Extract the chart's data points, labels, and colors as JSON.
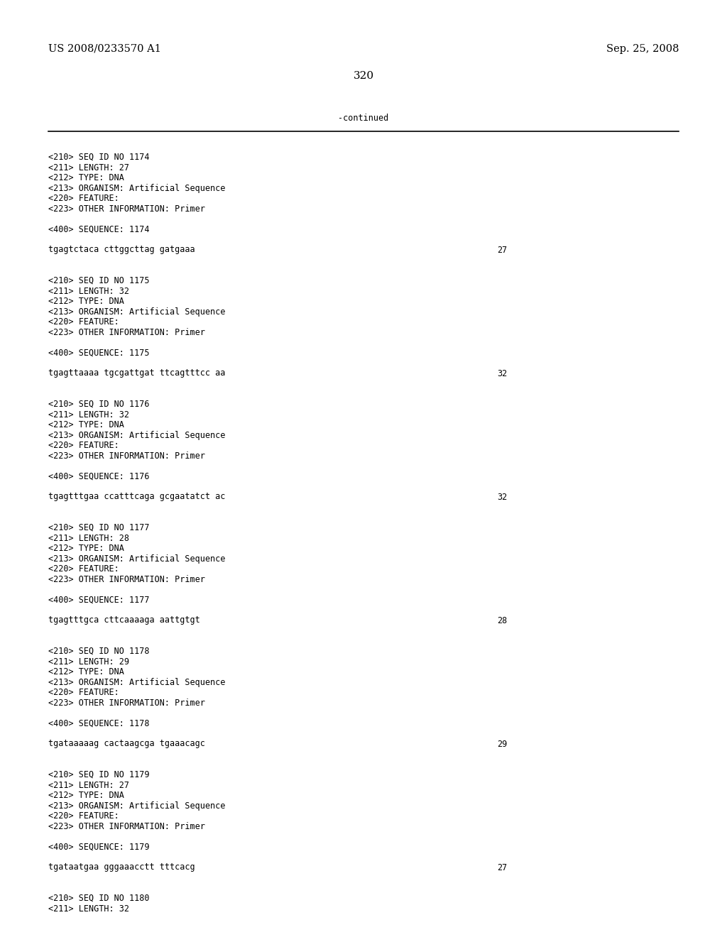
{
  "background_color": "#ffffff",
  "header_left": "US 2008/0233570 A1",
  "header_right": "Sep. 25, 2008",
  "page_number": "320",
  "continued_label": "-continued",
  "content_lines": [
    {
      "text": "<210> SEQ ID NO 1174",
      "type": "meta"
    },
    {
      "text": "<211> LENGTH: 27",
      "type": "meta"
    },
    {
      "text": "<212> TYPE: DNA",
      "type": "meta"
    },
    {
      "text": "<213> ORGANISM: Artificial Sequence",
      "type": "meta"
    },
    {
      "text": "<220> FEATURE:",
      "type": "meta"
    },
    {
      "text": "<223> OTHER INFORMATION: Primer",
      "type": "meta"
    },
    {
      "text": "",
      "type": "blank"
    },
    {
      "text": "<400> SEQUENCE: 1174",
      "type": "meta"
    },
    {
      "text": "",
      "type": "blank"
    },
    {
      "text": "tgagtctaca cttggcttag gatgaaa",
      "type": "seq",
      "num": "27"
    },
    {
      "text": "",
      "type": "blank"
    },
    {
      "text": "",
      "type": "blank"
    },
    {
      "text": "<210> SEQ ID NO 1175",
      "type": "meta"
    },
    {
      "text": "<211> LENGTH: 32",
      "type": "meta"
    },
    {
      "text": "<212> TYPE: DNA",
      "type": "meta"
    },
    {
      "text": "<213> ORGANISM: Artificial Sequence",
      "type": "meta"
    },
    {
      "text": "<220> FEATURE:",
      "type": "meta"
    },
    {
      "text": "<223> OTHER INFORMATION: Primer",
      "type": "meta"
    },
    {
      "text": "",
      "type": "blank"
    },
    {
      "text": "<400> SEQUENCE: 1175",
      "type": "meta"
    },
    {
      "text": "",
      "type": "blank"
    },
    {
      "text": "tgagttaaaa tgcgattgat ttcagtttcc aa",
      "type": "seq",
      "num": "32"
    },
    {
      "text": "",
      "type": "blank"
    },
    {
      "text": "",
      "type": "blank"
    },
    {
      "text": "<210> SEQ ID NO 1176",
      "type": "meta"
    },
    {
      "text": "<211> LENGTH: 32",
      "type": "meta"
    },
    {
      "text": "<212> TYPE: DNA",
      "type": "meta"
    },
    {
      "text": "<213> ORGANISM: Artificial Sequence",
      "type": "meta"
    },
    {
      "text": "<220> FEATURE:",
      "type": "meta"
    },
    {
      "text": "<223> OTHER INFORMATION: Primer",
      "type": "meta"
    },
    {
      "text": "",
      "type": "blank"
    },
    {
      "text": "<400> SEQUENCE: 1176",
      "type": "meta"
    },
    {
      "text": "",
      "type": "blank"
    },
    {
      "text": "tgagtttgaa ccatttcaga gcgaatatct ac",
      "type": "seq",
      "num": "32"
    },
    {
      "text": "",
      "type": "blank"
    },
    {
      "text": "",
      "type": "blank"
    },
    {
      "text": "<210> SEQ ID NO 1177",
      "type": "meta"
    },
    {
      "text": "<211> LENGTH: 28",
      "type": "meta"
    },
    {
      "text": "<212> TYPE: DNA",
      "type": "meta"
    },
    {
      "text": "<213> ORGANISM: Artificial Sequence",
      "type": "meta"
    },
    {
      "text": "<220> FEATURE:",
      "type": "meta"
    },
    {
      "text": "<223> OTHER INFORMATION: Primer",
      "type": "meta"
    },
    {
      "text": "",
      "type": "blank"
    },
    {
      "text": "<400> SEQUENCE: 1177",
      "type": "meta"
    },
    {
      "text": "",
      "type": "blank"
    },
    {
      "text": "tgagtttgca cttcaaaaga aattgtgt",
      "type": "seq",
      "num": "28"
    },
    {
      "text": "",
      "type": "blank"
    },
    {
      "text": "",
      "type": "blank"
    },
    {
      "text": "<210> SEQ ID NO 1178",
      "type": "meta"
    },
    {
      "text": "<211> LENGTH: 29",
      "type": "meta"
    },
    {
      "text": "<212> TYPE: DNA",
      "type": "meta"
    },
    {
      "text": "<213> ORGANISM: Artificial Sequence",
      "type": "meta"
    },
    {
      "text": "<220> FEATURE:",
      "type": "meta"
    },
    {
      "text": "<223> OTHER INFORMATION: Primer",
      "type": "meta"
    },
    {
      "text": "",
      "type": "blank"
    },
    {
      "text": "<400> SEQUENCE: 1178",
      "type": "meta"
    },
    {
      "text": "",
      "type": "blank"
    },
    {
      "text": "tgataaaaag cactaagcga tgaaacagc",
      "type": "seq",
      "num": "29"
    },
    {
      "text": "",
      "type": "blank"
    },
    {
      "text": "",
      "type": "blank"
    },
    {
      "text": "<210> SEQ ID NO 1179",
      "type": "meta"
    },
    {
      "text": "<211> LENGTH: 27",
      "type": "meta"
    },
    {
      "text": "<212> TYPE: DNA",
      "type": "meta"
    },
    {
      "text": "<213> ORGANISM: Artificial Sequence",
      "type": "meta"
    },
    {
      "text": "<220> FEATURE:",
      "type": "meta"
    },
    {
      "text": "<223> OTHER INFORMATION: Primer",
      "type": "meta"
    },
    {
      "text": "",
      "type": "blank"
    },
    {
      "text": "<400> SEQUENCE: 1179",
      "type": "meta"
    },
    {
      "text": "",
      "type": "blank"
    },
    {
      "text": "tgataatgaa gggaaacctt tttcacg",
      "type": "seq",
      "num": "27"
    },
    {
      "text": "",
      "type": "blank"
    },
    {
      "text": "",
      "type": "blank"
    },
    {
      "text": "<210> SEQ ID NO 1180",
      "type": "meta"
    },
    {
      "text": "<211> LENGTH: 32",
      "type": "meta"
    }
  ],
  "font_size_header": 10.5,
  "font_size_body": 8.5,
  "font_size_page": 11
}
